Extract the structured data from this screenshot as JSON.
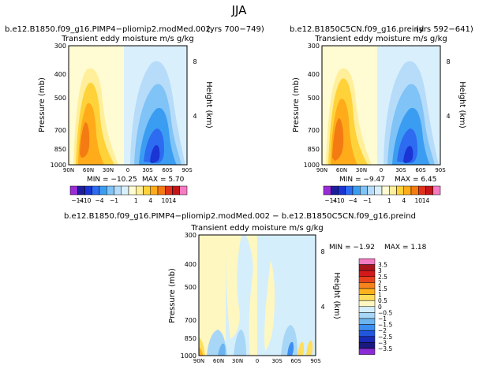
{
  "figure_title": "JJA",
  "chart_data": [
    {
      "type": "heatmap",
      "panel": "top-left",
      "case_title": "b.e12.B1850.f09_g16.PIMP4−pliomip2.modMed.002",
      "years": "(yrs 700−749)",
      "title": "Transient eddy moisture m/s g/kg",
      "xlabel": "",
      "ylabel": "Pressure (mb)",
      "right_label": "Height (km)",
      "x_ticks": [
        "90N",
        "60N",
        "30N",
        "0",
        "30S",
        "60S",
        "90S"
      ],
      "y_ticks": [
        "300",
        "400",
        "500",
        "700",
        "850",
        "1000"
      ],
      "right_ticks": [
        "8",
        "4"
      ],
      "xlim": [
        90,
        -90
      ],
      "ylim": [
        1000,
        300
      ],
      "min_label": "MIN = −10.25",
      "max_label": "MAX = 5.70",
      "palette": "full"
    },
    {
      "type": "heatmap",
      "panel": "top-right",
      "case_title": "b.e12.B1850C5CN.f09_g16.preind",
      "years": "(yrs 592−641)",
      "title": "Transient eddy moisture m/s g/kg",
      "xlabel": "",
      "ylabel": "Pressure (mb)",
      "right_label": "Height (km)",
      "x_ticks": [
        "90N",
        "60N",
        "30N",
        "0",
        "30S",
        "60S",
        "90S"
      ],
      "y_ticks": [
        "300",
        "400",
        "500",
        "700",
        "850",
        "1000"
      ],
      "right_ticks": [
        "8",
        "4"
      ],
      "xlim": [
        90,
        -90
      ],
      "ylim": [
        1000,
        300
      ],
      "min_label": "MIN = −9.47",
      "max_label": "MAX = 6.45",
      "palette": "full"
    },
    {
      "type": "heatmap",
      "panel": "bottom-difference",
      "case_title": "b.e12.B1850.f09_g16.PIMP4−pliomip2.modMed.002 − b.e12.B1850C5CN.f09_g16.preind",
      "title": "Transient eddy moisture m/s g/kg",
      "xlabel": "",
      "ylabel": "Pressure (mb)",
      "right_label": "Height (km)",
      "x_ticks": [
        "90N",
        "60N",
        "30N",
        "0",
        "30S",
        "60S",
        "90S"
      ],
      "y_ticks": [
        "300",
        "400",
        "500",
        "700",
        "850",
        "1000"
      ],
      "right_ticks": [
        "8",
        "4"
      ],
      "xlim": [
        90,
        -90
      ],
      "ylim": [
        1000,
        300
      ],
      "min_label": "MIN = −1.92",
      "max_label": "MAX = 1.18",
      "palette": "diff"
    }
  ],
  "top_colorbar": {
    "labels": [
      "−14",
      "−10",
      "−4",
      "−1",
      "1",
      "4",
      "10",
      "14"
    ],
    "colors": [
      "#9a2bd6",
      "#1e1e9c",
      "#1a35d3",
      "#2d6bf0",
      "#3a9df2",
      "#7fc3f7",
      "#b7dcf9",
      "#d9f0fc",
      "#fffbd2",
      "#ffef9a",
      "#ffd23a",
      "#ffab1a",
      "#f47b12",
      "#e0321a",
      "#c4151a",
      "#f57bc3"
    ]
  },
  "diff_colorbar": {
    "labels": [
      "3.5",
      "3",
      "2.5",
      "2",
      "1.5",
      "1",
      "0.5",
      "0",
      "−0.5",
      "−1",
      "−1.5",
      "−2",
      "−2.5",
      "−3",
      "−3.5"
    ],
    "colors": [
      "#f57bc3",
      "#a8141c",
      "#d3191c",
      "#e8421d",
      "#f7831d",
      "#ffb21d",
      "#ffde5c",
      "#fff7c0",
      "#d4eefb",
      "#a8d6f6",
      "#6cb4f0",
      "#3c8ef0",
      "#2157df",
      "#1a2ab4",
      "#1a1a7e",
      "#8b2bd6"
    ]
  }
}
